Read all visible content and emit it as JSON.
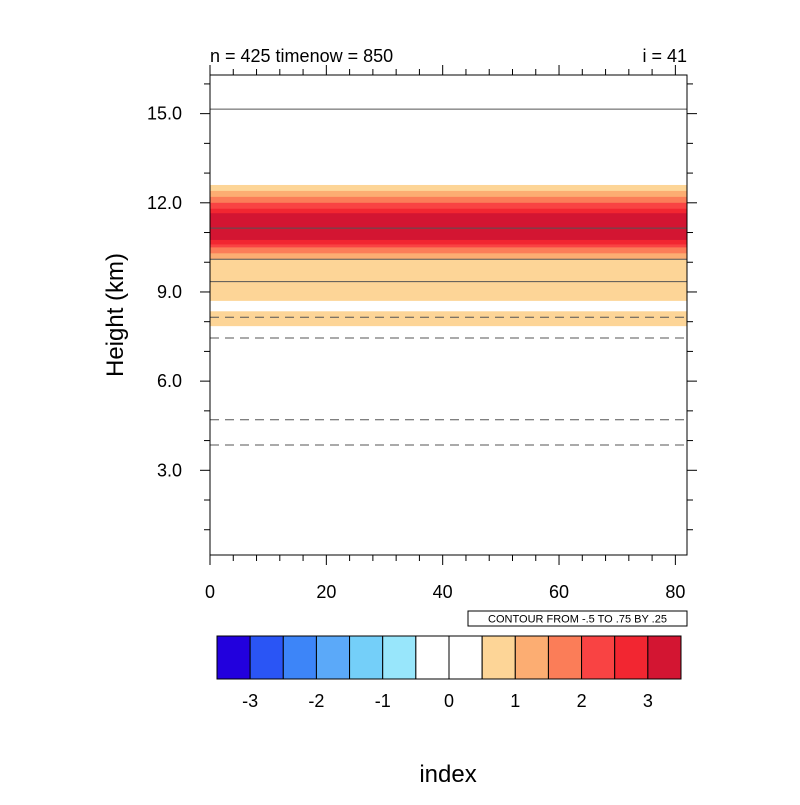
{
  "chart_data": {
    "type": "heatmap",
    "title_left": "n = 425 timenow = 850",
    "title_right": "i = 41",
    "xlabel": "index",
    "ylabel": "Height (km)",
    "xlim": [
      0,
      82
    ],
    "ylim": [
      0.15,
      16.3
    ],
    "x_ticks": [
      0,
      20,
      40,
      60,
      80
    ],
    "x_tick_labels": [
      "0",
      "20",
      "40",
      "60",
      "80"
    ],
    "y_ticks": [
      3,
      6,
      9,
      12,
      15
    ],
    "y_tick_labels": [
      "3.0",
      "6.0",
      "9.0",
      "12.0",
      "15.0"
    ],
    "bands": [
      {
        "y0": 7.85,
        "y1": 8.35,
        "level": 1
      },
      {
        "y0": 8.7,
        "y1": 12.6,
        "level": 1
      },
      {
        "y0": 10.1,
        "y1": 12.4,
        "level": 2
      },
      {
        "y0": 10.3,
        "y1": 12.2,
        "level": 3
      },
      {
        "y0": 10.5,
        "y1": 12.0,
        "level": 4
      },
      {
        "y0": 10.6,
        "y1": 11.8,
        "level": 5
      },
      {
        "y0": 10.75,
        "y1": 11.65,
        "level": 6
      }
    ],
    "contour_lines": [
      {
        "y": 15.15,
        "style": "solid"
      },
      {
        "y": 11.15,
        "style": "solid"
      },
      {
        "y": 10.1,
        "style": "solid"
      },
      {
        "y": 9.35,
        "style": "solid"
      },
      {
        "y": 8.15,
        "style": "dashed"
      },
      {
        "y": 7.45,
        "style": "dashed"
      },
      {
        "y": 4.7,
        "style": "dashed"
      },
      {
        "y": 3.85,
        "style": "dashed"
      }
    ],
    "contour_info": "CONTOUR FROM -.5 TO .75 BY .25",
    "colorbar": {
      "colors": [
        "#2200dd",
        "#2a55f5",
        "#3d85f8",
        "#5ba9f9",
        "#74cff9",
        "#98e6fb",
        "#ffffff",
        "#ffffff",
        "#fdd597",
        "#fcad72",
        "#fb7d58",
        "#f94343",
        "#f22631",
        "#d31532"
      ],
      "labels": [
        "-3",
        "-2",
        "-1",
        "0",
        "1",
        "2",
        "3"
      ]
    }
  }
}
